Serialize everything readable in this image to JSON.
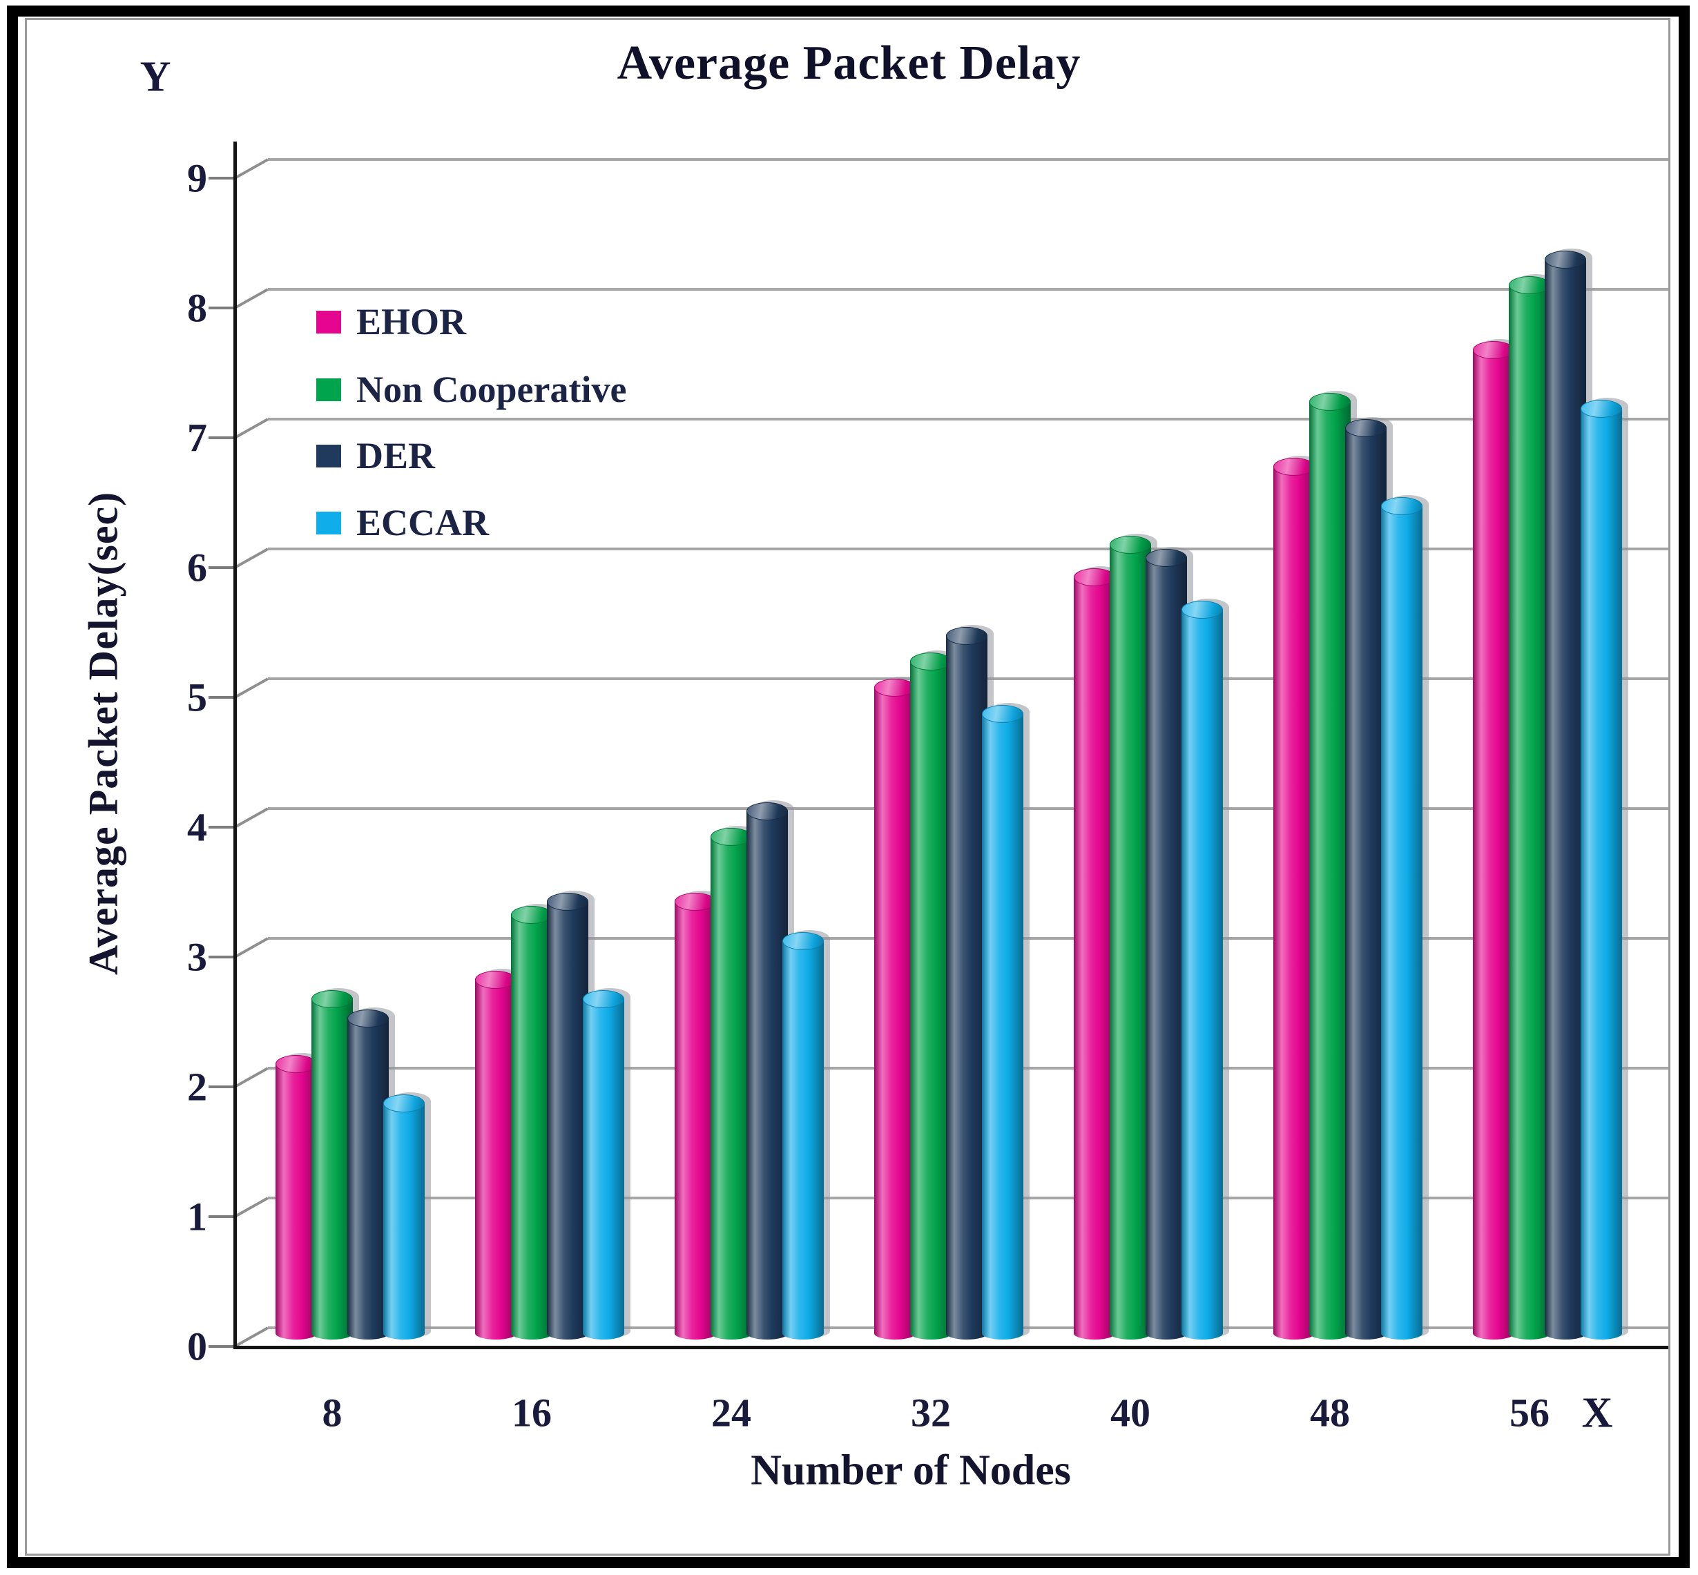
{
  "title": "Average Packet Delay",
  "axis_letters": {
    "y": "Y",
    "x": "X"
  },
  "chart_data": {
    "type": "bar",
    "title": "Average Packet Delay",
    "xlabel": "Number of Nodes",
    "ylabel": "Average Packet  Delay(sec)",
    "categories": [
      "8",
      "16",
      "24",
      "32",
      "40",
      "48",
      "56"
    ],
    "series": [
      {
        "name": "EHOR",
        "color": "#E5068F",
        "values": [
          2.1,
          2.75,
          3.35,
          5.0,
          5.85,
          6.7,
          7.6
        ]
      },
      {
        "name": "Non Cooperative",
        "color": "#00A44C",
        "values": [
          2.6,
          3.25,
          3.85,
          5.2,
          6.1,
          7.2,
          8.1
        ]
      },
      {
        "name": "DER",
        "color": "#1F3A5C",
        "values": [
          2.45,
          3.35,
          4.05,
          5.4,
          6.0,
          7.0,
          8.3
        ]
      },
      {
        "name": "ECCAR",
        "color": "#0FADE9",
        "values": [
          1.8,
          2.6,
          3.05,
          4.8,
          5.6,
          6.4,
          7.15
        ]
      }
    ],
    "yticks": [
      0,
      1,
      2,
      3,
      4,
      5,
      6,
      7,
      8,
      9
    ],
    "ylim": [
      0,
      9
    ],
    "grid": true,
    "legend_position": "upper-left-inside",
    "gridline_color": "#a6a6a6",
    "axis_color": "#141414",
    "bar_style": "cylinder-3d"
  }
}
